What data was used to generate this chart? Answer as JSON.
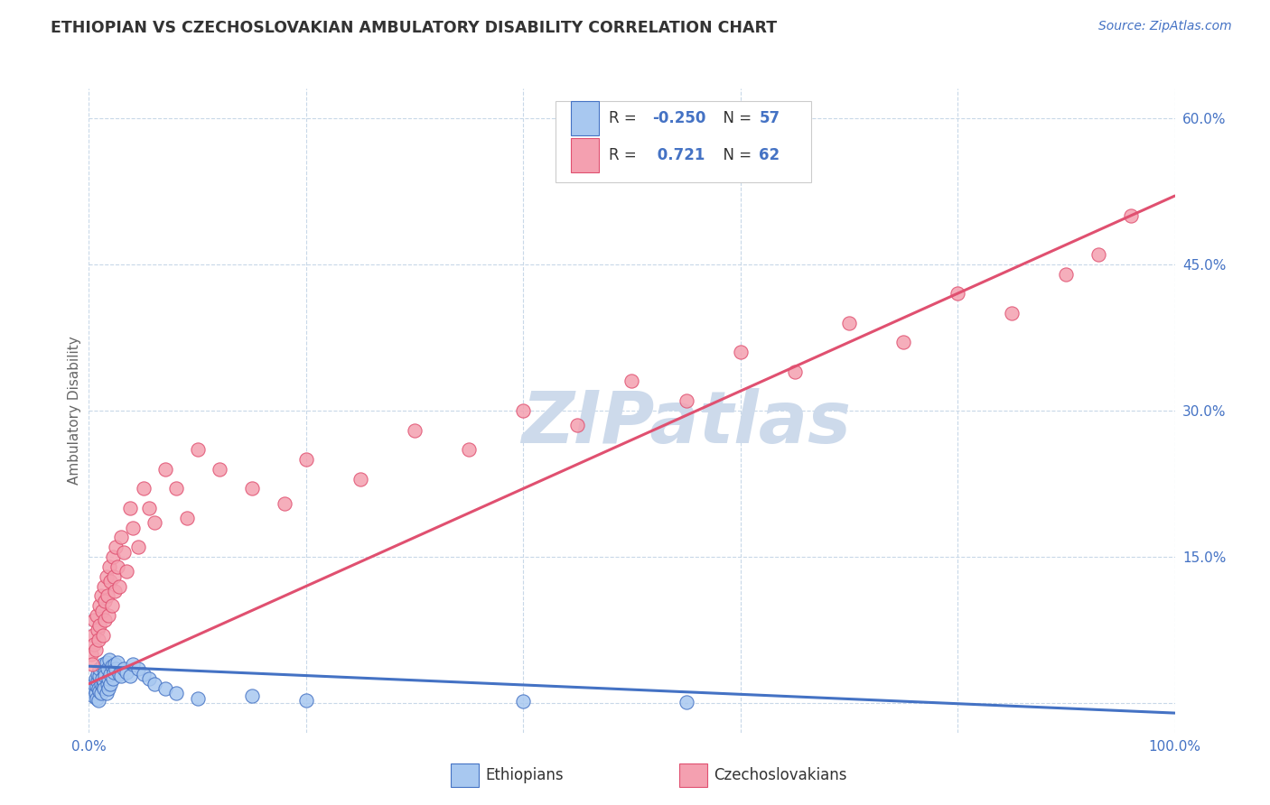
{
  "title": "ETHIOPIAN VS CZECHOSLOVAKIAN AMBULATORY DISABILITY CORRELATION CHART",
  "source": "Source: ZipAtlas.com",
  "ylabel": "Ambulatory Disability",
  "xlim": [
    0,
    100
  ],
  "ylim": [
    -3,
    63
  ],
  "color_ethiopians": "#a8c8f0",
  "color_czechoslovakians": "#f4a0b0",
  "color_line_ethiopians": "#4472c4",
  "color_line_czechoslovakians": "#e05070",
  "color_title": "#333333",
  "color_axis_label": "#666666",
  "color_source": "#4472c4",
  "color_r_value": "#4472c4",
  "watermark_text": "ZIPatlas",
  "watermark_color": "#cddaeb",
  "background_color": "#ffffff",
  "grid_color": "#c8d8e8",
  "legend_r1": "-0.250",
  "legend_n1": "57",
  "legend_r2": " 0.721",
  "legend_n2": "62",
  "ethiopians_x": [
    0.3,
    0.4,
    0.5,
    0.5,
    0.6,
    0.6,
    0.7,
    0.7,
    0.8,
    0.8,
    0.9,
    0.9,
    1.0,
    1.0,
    1.0,
    1.1,
    1.1,
    1.2,
    1.2,
    1.3,
    1.3,
    1.4,
    1.4,
    1.5,
    1.5,
    1.6,
    1.6,
    1.7,
    1.7,
    1.8,
    1.8,
    1.9,
    2.0,
    2.0,
    2.1,
    2.2,
    2.3,
    2.4,
    2.5,
    2.6,
    2.8,
    3.0,
    3.2,
    3.5,
    3.8,
    4.0,
    4.5,
    5.0,
    5.5,
    6.0,
    7.0,
    8.0,
    10.0,
    15.0,
    20.0,
    40.0,
    55.0
  ],
  "ethiopians_y": [
    1.2,
    0.8,
    1.5,
    2.0,
    1.0,
    2.5,
    1.8,
    0.5,
    2.2,
    3.0,
    1.5,
    0.3,
    2.8,
    1.2,
    3.5,
    2.0,
    1.0,
    2.5,
    3.8,
    1.8,
    4.0,
    2.2,
    1.5,
    3.2,
    2.8,
    1.0,
    4.2,
    2.0,
    3.5,
    1.5,
    2.5,
    4.5,
    2.0,
    3.0,
    3.8,
    2.5,
    3.2,
    4.0,
    3.5,
    4.2,
    3.0,
    2.8,
    3.5,
    3.2,
    2.8,
    4.0,
    3.5,
    3.0,
    2.5,
    2.0,
    1.5,
    1.0,
    0.5,
    0.8,
    0.3,
    0.2,
    0.1
  ],
  "czechoslovakians_x": [
    0.2,
    0.3,
    0.4,
    0.5,
    0.5,
    0.6,
    0.7,
    0.8,
    0.9,
    1.0,
    1.0,
    1.1,
    1.2,
    1.3,
    1.4,
    1.5,
    1.5,
    1.6,
    1.7,
    1.8,
    1.9,
    2.0,
    2.1,
    2.2,
    2.3,
    2.4,
    2.5,
    2.6,
    2.8,
    3.0,
    3.2,
    3.5,
    3.8,
    4.0,
    4.5,
    5.0,
    5.5,
    6.0,
    7.0,
    8.0,
    9.0,
    10.0,
    12.0,
    15.0,
    18.0,
    20.0,
    25.0,
    30.0,
    35.0,
    40.0,
    45.0,
    50.0,
    55.0,
    60.0,
    65.0,
    70.0,
    75.0,
    80.0,
    85.0,
    90.0,
    93.0,
    96.0
  ],
  "czechoslovakians_y": [
    5.0,
    4.0,
    7.0,
    6.0,
    8.5,
    5.5,
    9.0,
    7.5,
    6.5,
    10.0,
    8.0,
    11.0,
    9.5,
    7.0,
    12.0,
    10.5,
    8.5,
    13.0,
    11.0,
    9.0,
    14.0,
    12.5,
    10.0,
    15.0,
    13.0,
    11.5,
    16.0,
    14.0,
    12.0,
    17.0,
    15.5,
    13.5,
    20.0,
    18.0,
    16.0,
    22.0,
    20.0,
    18.5,
    24.0,
    22.0,
    19.0,
    26.0,
    24.0,
    22.0,
    20.5,
    25.0,
    23.0,
    28.0,
    26.0,
    30.0,
    28.5,
    33.0,
    31.0,
    36.0,
    34.0,
    39.0,
    37.0,
    42.0,
    40.0,
    44.0,
    46.0,
    50.0
  ],
  "ethiopian_trend_x": [
    0,
    100
  ],
  "ethiopian_trend_y": [
    3.8,
    -1.0
  ],
  "czechoslovakian_trend_x": [
    0,
    100
  ],
  "czechoslovakian_trend_y": [
    2.0,
    52.0
  ]
}
